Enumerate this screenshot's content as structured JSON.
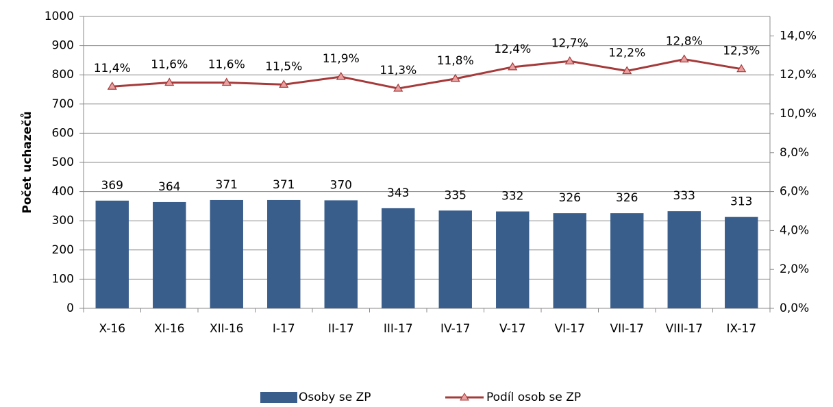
{
  "chart_data": {
    "type": "bar",
    "y_label": "Počet uchazečů",
    "categories": [
      "X-16",
      "XI-16",
      "XII-16",
      "I-17",
      "II-17",
      "III-17",
      "IV-17",
      "V-17",
      "VI-17",
      "VII-17",
      "VIII-17",
      "IX-17"
    ],
    "series": [
      {
        "name": "Osoby se ZP",
        "type": "bar",
        "color": "#3a5e8c",
        "values": [
          369,
          364,
          371,
          371,
          370,
          343,
          335,
          332,
          326,
          326,
          333,
          313
        ]
      },
      {
        "name": "Podíl osob se ZP",
        "type": "line",
        "axis": "y2",
        "color": "#a63a3a",
        "values": [
          11.4,
          11.6,
          11.6,
          11.5,
          11.9,
          11.3,
          11.8,
          12.4,
          12.7,
          12.2,
          12.8,
          12.3
        ],
        "value_labels": [
          "11,4%",
          "11,6%",
          "11,6%",
          "11,5%",
          "11,9%",
          "11,3%",
          "11,8%",
          "12,4%",
          "12,7%",
          "12,2%",
          "12,8%",
          "12,3%"
        ]
      }
    ],
    "ylim": [
      0,
      1000
    ],
    "yticks": [
      0,
      100,
      200,
      300,
      400,
      500,
      600,
      700,
      800,
      900,
      1000
    ],
    "y2lim": [
      0,
      15
    ],
    "y2ticks": [
      {
        "value": 0,
        "label": "0,0%"
      },
      {
        "value": 2,
        "label": "2,0%"
      },
      {
        "value": 4,
        "label": "4,0%"
      },
      {
        "value": 6,
        "label": "6,0%"
      },
      {
        "value": 8,
        "label": "8,0%"
      },
      {
        "value": 10,
        "label": "10,0%"
      },
      {
        "value": 12,
        "label": "12,0%"
      },
      {
        "value": 14,
        "label": "14,0%"
      }
    ],
    "grid": true,
    "legend": "bottom"
  }
}
